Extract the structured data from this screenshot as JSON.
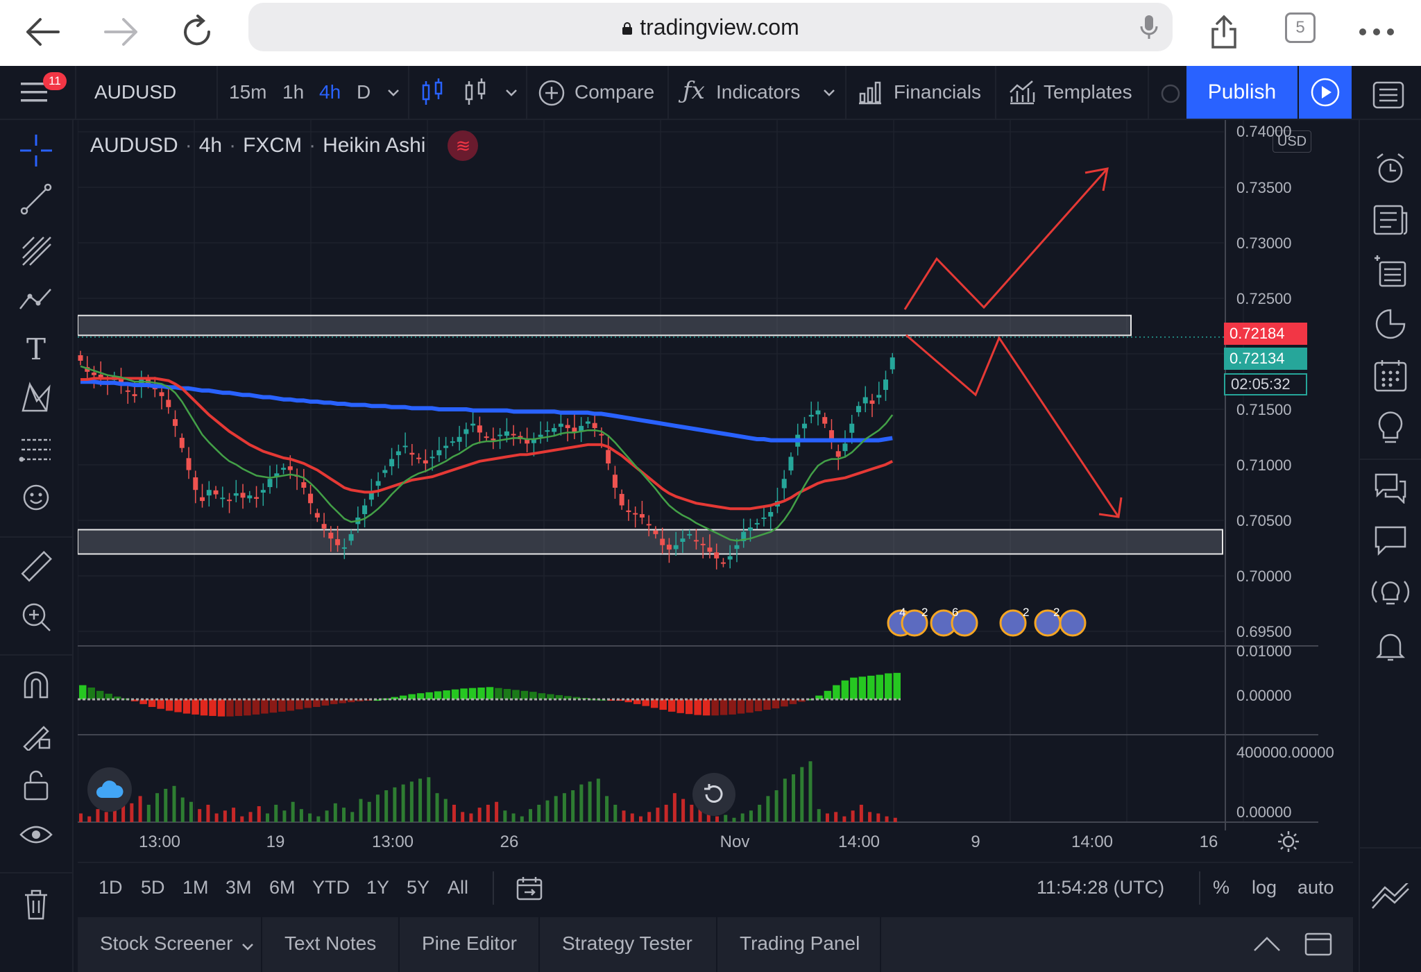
{
  "browser": {
    "url": "tradingview.com",
    "tab_count": "5"
  },
  "toolbar": {
    "badge_count": "11",
    "symbol": "AUDUSD",
    "intervals": [
      "15m",
      "1h",
      "4h",
      "D"
    ],
    "active_interval": "4h",
    "compare_label": "Compare",
    "indicators_label": "Indicators",
    "financials_label": "Financials",
    "templates_label": "Templates",
    "publish_label": "Publish"
  },
  "legend": {
    "symbol": "AUDUSD",
    "interval": "4h",
    "exchange": "FXCM",
    "chart_style": "Heikin Ashi",
    "separator": "·"
  },
  "price_scale": {
    "currency": "USD",
    "ticks": [
      "0.74000",
      "0.73500",
      "0.73000",
      "0.72500",
      "0.72184",
      "0.71500",
      "0.71000",
      "0.70500",
      "0.70000",
      "0.69500"
    ],
    "last_price_label": "0.72184",
    "current_price_label": "0.72134",
    "countdown": "02:05:32",
    "colors": {
      "last_price": "#f23645",
      "current_price": "#26a69a",
      "countdown": "#26a69a"
    }
  },
  "macd_scale": [
    "0.01000",
    "0.00000"
  ],
  "volume_scale": [
    "400000.00000",
    "0.00000"
  ],
  "time_axis": [
    "13:00",
    "19",
    "13:00",
    "26",
    "Nov",
    "14:00",
    "9",
    "14:00",
    "16"
  ],
  "events": {
    "group1": [
      "4",
      "2",
      "6"
    ],
    "group2": [
      "2",
      "2"
    ]
  },
  "range_bar": {
    "ranges": [
      "1D",
      "5D",
      "1M",
      "3M",
      "6M",
      "YTD",
      "1Y",
      "5Y",
      "All"
    ],
    "clock": "11:54:28 (UTC)",
    "percent_label": "%",
    "log_label": "log",
    "auto_label": "auto"
  },
  "bottom_panel": {
    "tabs": [
      "Stock Screener",
      "Text Notes",
      "Pine Editor",
      "Strategy Tester",
      "Trading Panel"
    ]
  },
  "chart_data": {
    "type": "candlestick",
    "symbol": "AUDUSD",
    "ylim": [
      0.694,
      0.7415
    ],
    "price_series": [
      0.7197,
      0.7187,
      0.7184,
      0.718,
      0.7176,
      0.7183,
      0.7175,
      0.717,
      0.7165,
      0.718,
      0.7176,
      0.7172,
      0.7165,
      0.7155,
      0.7138,
      0.7118,
      0.7098,
      0.708,
      0.707,
      0.708,
      0.7076,
      0.7073,
      0.7071,
      0.7077,
      0.7073,
      0.7075,
      0.7072,
      0.708,
      0.709,
      0.7095,
      0.71,
      0.7098,
      0.7092,
      0.7082,
      0.7068,
      0.7055,
      0.7045,
      0.7036,
      0.703,
      0.7028,
      0.704,
      0.7055,
      0.7066,
      0.7078,
      0.7088,
      0.7098,
      0.7108,
      0.7115,
      0.712,
      0.7112,
      0.7108,
      0.7104,
      0.711,
      0.7116,
      0.712,
      0.7124,
      0.7128,
      0.7135,
      0.714,
      0.7132,
      0.7128,
      0.7125,
      0.713,
      0.7133,
      0.713,
      0.7126,
      0.7122,
      0.7126,
      0.713,
      0.7134,
      0.7136,
      0.714,
      0.7136,
      0.7132,
      0.7138,
      0.7142,
      0.7136,
      0.713,
      0.7104,
      0.7082,
      0.7066,
      0.706,
      0.7058,
      0.7055,
      0.7048,
      0.704,
      0.703,
      0.7026,
      0.703,
      0.7036,
      0.704,
      0.7034,
      0.703,
      0.7024,
      0.7018,
      0.7014,
      0.702,
      0.703,
      0.7042,
      0.7046,
      0.705,
      0.7055,
      0.706,
      0.707,
      0.709,
      0.711,
      0.713,
      0.714,
      0.7148,
      0.7152,
      0.714,
      0.7125,
      0.711,
      0.7122,
      0.714,
      0.7156,
      0.7164,
      0.7158,
      0.7166,
      0.718,
      0.72
    ],
    "ema_fast": [
      0.7192,
      0.719,
      0.7188,
      0.7186,
      0.7184,
      0.7183,
      0.7182,
      0.718,
      0.7178,
      0.7178,
      0.7178,
      0.7177,
      0.7176,
      0.7173,
      0.7168,
      0.716,
      0.715,
      0.714,
      0.713,
      0.7123,
      0.7117,
      0.7111,
      0.7106,
      0.7103,
      0.7099,
      0.7096,
      0.7093,
      0.7092,
      0.7091,
      0.7092,
      0.7093,
      0.7094,
      0.7093,
      0.7091,
      0.7086,
      0.708,
      0.7073,
      0.7066,
      0.706,
      0.7054,
      0.7051,
      0.7052,
      0.7054,
      0.7058,
      0.7063,
      0.7069,
      0.7076,
      0.7082,
      0.7088,
      0.7092,
      0.7095,
      0.7097,
      0.71,
      0.7103,
      0.7106,
      0.711,
      0.7113,
      0.7117,
      0.7121,
      0.7123,
      0.7124,
      0.7124,
      0.7125,
      0.7126,
      0.7127,
      0.7127,
      0.7126,
      0.7126,
      0.7127,
      0.7128,
      0.7129,
      0.7131,
      0.7132,
      0.7132,
      0.7133,
      0.7134,
      0.7134,
      0.7133,
      0.7129,
      0.7123,
      0.7116,
      0.7109,
      0.7102,
      0.7095,
      0.7088,
      0.7081,
      0.7073,
      0.7066,
      0.7061,
      0.7057,
      0.7054,
      0.705,
      0.7047,
      0.7044,
      0.7041,
      0.7038,
      0.7035,
      0.7034,
      0.7035,
      0.7036,
      0.7038,
      0.704,
      0.7042,
      0.7046,
      0.7053,
      0.7062,
      0.7073,
      0.7084,
      0.7094,
      0.7102,
      0.7106,
      0.7108,
      0.7108,
      0.711,
      0.7114,
      0.712,
      0.7126,
      0.713,
      0.7134,
      0.714,
      0.7148
    ],
    "ema_slow": [
      0.718,
      0.718,
      0.7181,
      0.7181,
      0.7181,
      0.7181,
      0.7181,
      0.7181,
      0.7181,
      0.7181,
      0.7181,
      0.7181,
      0.718,
      0.7179,
      0.7176,
      0.7172,
      0.7166,
      0.716,
      0.7154,
      0.7148,
      0.7143,
      0.7138,
      0.7133,
      0.7129,
      0.7125,
      0.7121,
      0.7118,
      0.7115,
      0.7113,
      0.7111,
      0.7109,
      0.7108,
      0.7106,
      0.7104,
      0.7101,
      0.7098,
      0.7094,
      0.709,
      0.7086,
      0.7082,
      0.708,
      0.7079,
      0.7078,
      0.7078,
      0.7079,
      0.7081,
      0.7083,
      0.7085,
      0.7087,
      0.7089,
      0.709,
      0.7091,
      0.7092,
      0.7094,
      0.7096,
      0.7098,
      0.71,
      0.7102,
      0.7104,
      0.7106,
      0.7107,
      0.7108,
      0.7109,
      0.711,
      0.7111,
      0.7112,
      0.7112,
      0.7113,
      0.7114,
      0.7115,
      0.7116,
      0.7117,
      0.7118,
      0.7119,
      0.712,
      0.7121,
      0.7121,
      0.7121,
      0.7119,
      0.7115,
      0.7111,
      0.7106,
      0.7101,
      0.7096,
      0.7091,
      0.7086,
      0.7081,
      0.7077,
      0.7074,
      0.7072,
      0.707,
      0.7068,
      0.7067,
      0.7066,
      0.7065,
      0.7064,
      0.7063,
      0.7063,
      0.7063,
      0.7063,
      0.7064,
      0.7065,
      0.7066,
      0.7068,
      0.707,
      0.7073,
      0.7077,
      0.708,
      0.7083,
      0.7086,
      0.7088,
      0.7089,
      0.709,
      0.7091,
      0.7093,
      0.7095,
      0.7097,
      0.7099,
      0.7101,
      0.7103,
      0.7106
    ],
    "sma_long": [
      0.7178,
      0.7178,
      0.7178,
      0.7177,
      0.7177,
      0.7177,
      0.7176,
      0.7176,
      0.7175,
      0.7175,
      0.7175,
      0.7174,
      0.7174,
      0.7173,
      0.7173,
      0.7172,
      0.7172,
      0.7171,
      0.717,
      0.717,
      0.7169,
      0.7168,
      0.7168,
      0.7167,
      0.7166,
      0.7166,
      0.7165,
      0.7164,
      0.7164,
      0.7163,
      0.7162,
      0.7162,
      0.7161,
      0.7161,
      0.716,
      0.716,
      0.7159,
      0.7159,
      0.7158,
      0.7158,
      0.7157,
      0.7157,
      0.7157,
      0.7156,
      0.7156,
      0.7156,
      0.7155,
      0.7155,
      0.7155,
      0.7154,
      0.7154,
      0.7154,
      0.7154,
      0.7153,
      0.7153,
      0.7153,
      0.7153,
      0.7153,
      0.7152,
      0.7152,
      0.7152,
      0.7152,
      0.7152,
      0.7152,
      0.7151,
      0.7151,
      0.7151,
      0.7151,
      0.7151,
      0.7151,
      0.7151,
      0.715,
      0.715,
      0.715,
      0.715,
      0.715,
      0.7149,
      0.7149,
      0.7148,
      0.7147,
      0.7146,
      0.7145,
      0.7144,
      0.7143,
      0.7142,
      0.7141,
      0.714,
      0.7139,
      0.7138,
      0.7137,
      0.7136,
      0.7135,
      0.7134,
      0.7133,
      0.7132,
      0.7131,
      0.713,
      0.7129,
      0.7128,
      0.7127,
      0.7126,
      0.7126,
      0.7125,
      0.7125,
      0.7125,
      0.7125,
      0.7125,
      0.7125,
      0.7125,
      0.7125,
      0.7125,
      0.7125,
      0.7125,
      0.7125,
      0.7125,
      0.7125,
      0.7125,
      0.7125,
      0.7125,
      0.7126,
      0.7127
    ],
    "zones": [
      {
        "low": 0.722,
        "high": 0.7238
      },
      {
        "low": 0.7022,
        "high": 0.7044
      }
    ],
    "dotted_level": 0.72184,
    "macd_ylim": [
      -0.006,
      0.011
    ],
    "macd": [
      0.003,
      0.0025,
      0.0018,
      0.0012,
      0.0006,
      0.0002,
      -0.0004,
      -0.001,
      -0.0016,
      -0.002,
      -0.0024,
      -0.0027,
      -0.003,
      -0.0032,
      -0.0034,
      -0.0035,
      -0.0036,
      -0.0036,
      -0.0035,
      -0.0034,
      -0.0032,
      -0.003,
      -0.0028,
      -0.0026,
      -0.0024,
      -0.0021,
      -0.0018,
      -0.0016,
      -0.0013,
      -0.001,
      -0.0008,
      -0.0006,
      -0.0004,
      -0.0002,
      0.0,
      0.0002,
      0.0005,
      0.0008,
      0.0011,
      0.0013,
      0.0015,
      0.0017,
      0.0019,
      0.0021,
      0.0023,
      0.0024,
      0.0025,
      0.0026,
      0.0024,
      0.0022,
      0.002,
      0.0018,
      0.0016,
      0.0013,
      0.0011,
      0.0009,
      0.0007,
      0.0005,
      0.0003,
      0.0001,
      0.0,
      -0.0001,
      -0.0003,
      -0.0006,
      -0.001,
      -0.0014,
      -0.0018,
      -0.0022,
      -0.0026,
      -0.0029,
      -0.0031,
      -0.0033,
      -0.0034,
      -0.0034,
      -0.0033,
      -0.0032,
      -0.003,
      -0.0028,
      -0.0025,
      -0.0022,
      -0.0019,
      -0.0015,
      -0.001,
      -0.0005,
      0.0001,
      0.0008,
      0.0018,
      0.003,
      0.004,
      0.0046,
      0.0048,
      0.005,
      0.0052,
      0.0055,
      0.0056
    ],
    "volume_ylim": [
      0,
      450000
    ],
    "volume": [
      60,
      40,
      90,
      70,
      110,
      150,
      130,
      180,
      120,
      200,
      230,
      250,
      170,
      140,
      90,
      120,
      60,
      80,
      100,
      40,
      70,
      110,
      60,
      120,
      80,
      140,
      90,
      60,
      40,
      80,
      130,
      100,
      70,
      160,
      140,
      190,
      220,
      240,
      260,
      280,
      300,
      310,
      200,
      160,
      120,
      70,
      60,
      100,
      120,
      140,
      80,
      60,
      40,
      90,
      120,
      150,
      180,
      200,
      220,
      260,
      280,
      300,
      180,
      120,
      80,
      60,
      40,
      70,
      100,
      120,
      200,
      160,
      120,
      90,
      60,
      40,
      50,
      30,
      60,
      80,
      120,
      180,
      220,
      300,
      330,
      380,
      420,
      90,
      60,
      70,
      40,
      80,
      120,
      70,
      60,
      40,
      30
    ],
    "volume_up": [
      false,
      false,
      false,
      false,
      false,
      false,
      false,
      false,
      true,
      true,
      true,
      true,
      true,
      true,
      false,
      false,
      false,
      false,
      false,
      false,
      false,
      false,
      true,
      true,
      true,
      true,
      true,
      true,
      true,
      true,
      true,
      true,
      true,
      true,
      true,
      true,
      true,
      true,
      true,
      true,
      true,
      true,
      true,
      true,
      false,
      false,
      false,
      false,
      false,
      false,
      true,
      true,
      true,
      true,
      true,
      true,
      true,
      true,
      true,
      true,
      true,
      true,
      true,
      true,
      false,
      false,
      false,
      false,
      false,
      false,
      false,
      false,
      false,
      false,
      false,
      false,
      true,
      true,
      true,
      true,
      true,
      true,
      true,
      true,
      true,
      true,
      true,
      true,
      false,
      false,
      false,
      false,
      false,
      false,
      false,
      false,
      false
    ]
  }
}
